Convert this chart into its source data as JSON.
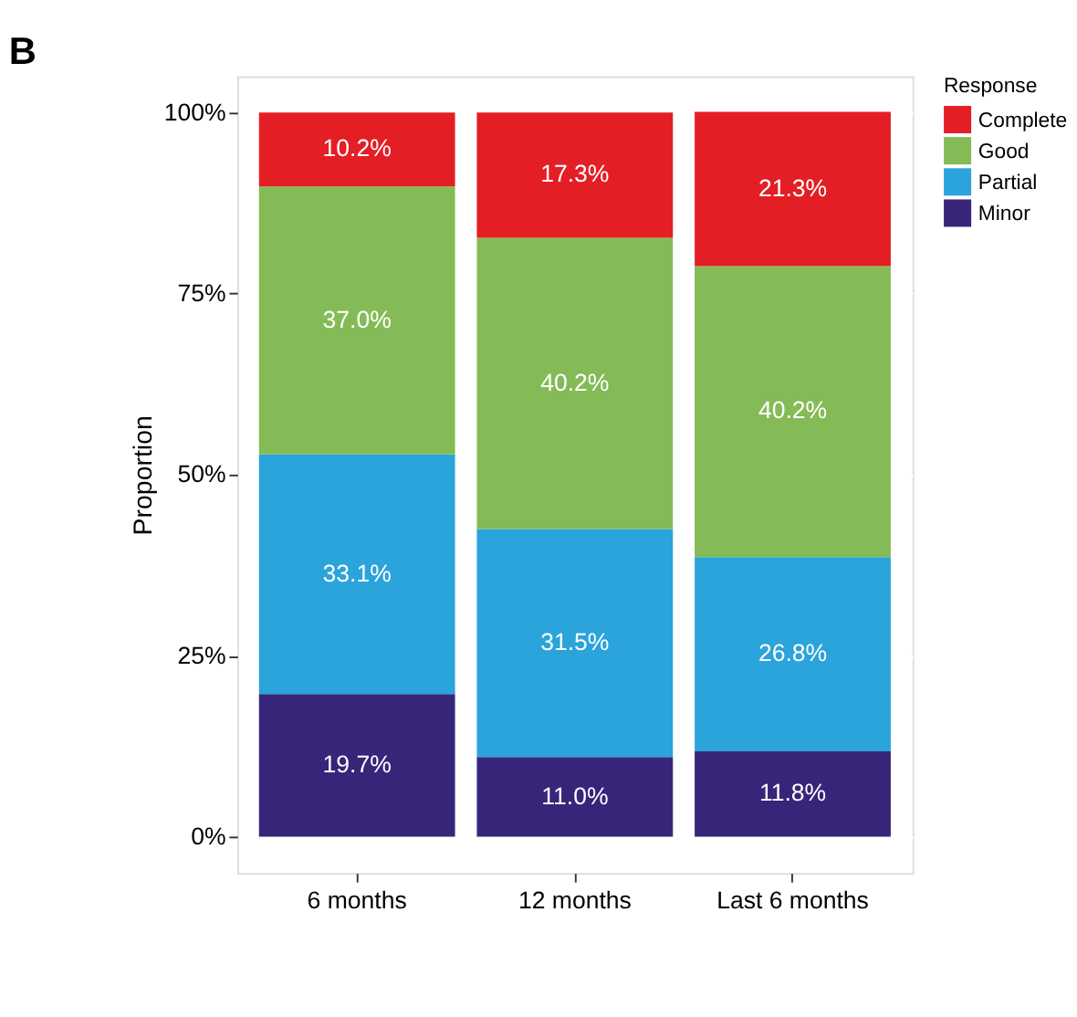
{
  "chart_data": {
    "type": "bar",
    "title": "B",
    "ylabel": "Proportion",
    "legend_title": "Response",
    "categories": [
      "6 months",
      "12 months",
      "Last 6 months"
    ],
    "stacked": true,
    "series": [
      {
        "name": "Minor",
        "color": "#372579",
        "values": [
          19.7,
          11.0,
          11.8
        ]
      },
      {
        "name": "Partial",
        "color": "#2ba3db",
        "values": [
          33.1,
          31.5,
          26.8
        ]
      },
      {
        "name": "Good",
        "color": "#84bb56",
        "values": [
          37.0,
          40.2,
          40.2
        ]
      },
      {
        "name": "Complete",
        "color": "#e31e24",
        "values": [
          10.2,
          17.3,
          21.3
        ]
      }
    ],
    "ylim": [
      -5,
      105
    ],
    "yticks": [
      {
        "value": 0,
        "label": "0%"
      },
      {
        "value": 25,
        "label": "25%"
      },
      {
        "value": 50,
        "label": "50%"
      },
      {
        "value": 75,
        "label": "75%"
      },
      {
        "value": 100,
        "label": "100%"
      }
    ],
    "value_labels": [
      [
        "19.7%",
        "11.0%",
        "11.8%"
      ],
      [
        "33.1%",
        "31.5%",
        "26.8%"
      ],
      [
        "37.0%",
        "40.2%",
        "40.2%"
      ],
      [
        "10.2%",
        "17.3%",
        "21.3%"
      ]
    ],
    "grid": "y",
    "legend": "right"
  }
}
